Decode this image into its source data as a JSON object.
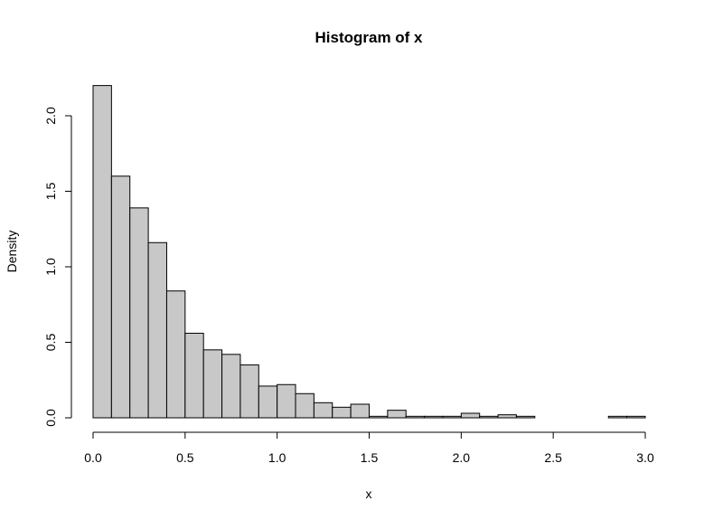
{
  "chart_data": {
    "type": "bar",
    "title": "Histogram of x",
    "xlabel": "x",
    "ylabel": "Density",
    "xlim": [
      0,
      3
    ],
    "ylim": [
      0,
      2.2
    ],
    "x_ticks": [
      0,
      0.5,
      1,
      1.5,
      2,
      2.5,
      3
    ],
    "x_tick_labels": [
      "0.0",
      "0.5",
      "1.0",
      "1.5",
      "2.0",
      "2.5",
      "3.0"
    ],
    "y_ticks": [
      0,
      0.5,
      1,
      1.5,
      2
    ],
    "y_tick_labels": [
      "0.0",
      "0.5",
      "1.0",
      "1.5",
      "2.0"
    ],
    "bin_width": 0.1,
    "bin_starts": [
      0.0,
      0.1,
      0.2,
      0.3,
      0.4,
      0.5,
      0.6,
      0.7,
      0.8,
      0.9,
      1.0,
      1.1,
      1.2,
      1.3,
      1.4,
      1.5,
      1.6,
      1.7,
      1.8,
      1.9,
      2.0,
      2.1,
      2.2,
      2.3,
      2.4,
      2.5,
      2.6,
      2.7,
      2.8,
      2.9
    ],
    "values": [
      2.2,
      1.6,
      1.39,
      1.16,
      0.84,
      0.56,
      0.45,
      0.42,
      0.35,
      0.21,
      0.22,
      0.16,
      0.1,
      0.07,
      0.09,
      0.01,
      0.05,
      0.01,
      0.01,
      0.01,
      0.03,
      0.01,
      0.02,
      0.01,
      0.0,
      0.0,
      0.0,
      0.0,
      0.01,
      0.01
    ],
    "grid": false,
    "bar_color": "#c8c8c8",
    "edge_color": "#000000"
  }
}
